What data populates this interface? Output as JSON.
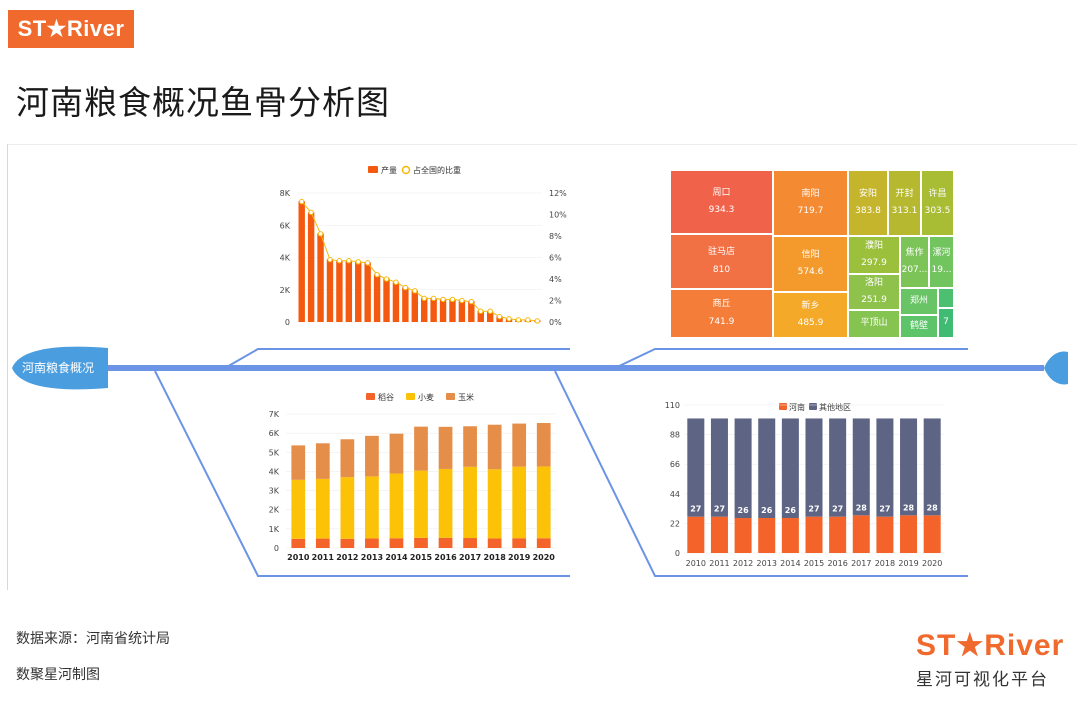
{
  "header": {
    "logo": "ST★River",
    "title": "河南粮食概况鱼骨分析图"
  },
  "fishbone": {
    "head_label": "河南粮食概况"
  },
  "footer": {
    "source": "数据来源：河南省统计局",
    "credit": "数聚星河制图",
    "brand": "ST★River",
    "brand_sub": "星河可视化平台"
  },
  "colors": {
    "accent": "#ef6a2c",
    "spine": "#6b94e6",
    "head": "#4a9ee0",
    "bar_red": "#f35a0f",
    "rice": "#f4642a",
    "wheat": "#fcc208",
    "corn": "#e58e4a",
    "henan": "#f4642a",
    "other": "#5e6584"
  },
  "chart_data": [
    {
      "type": "bar",
      "title": "",
      "legend": [
        "产量",
        "占全国的比重"
      ],
      "legend_position": "top",
      "series": [
        {
          "name": "产量",
          "type": "bar",
          "values": [
            7500,
            6800,
            5500,
            3900,
            3800,
            3800,
            3750,
            3700,
            2950,
            2700,
            2450,
            2150,
            1950,
            1500,
            1450,
            1400,
            1400,
            1350,
            1300,
            700,
            650,
            350,
            200,
            150,
            120,
            100
          ]
        },
        {
          "name": "占全国的比重",
          "type": "line",
          "axis": "right",
          "values": [
            11.2,
            10.2,
            8.2,
            5.8,
            5.7,
            5.7,
            5.6,
            5.5,
            4.4,
            4.0,
            3.7,
            3.2,
            2.9,
            2.2,
            2.2,
            2.1,
            2.1,
            2.0,
            1.9,
            1.0,
            1.0,
            0.5,
            0.3,
            0.2,
            0.2,
            0.1
          ]
        }
      ],
      "yticks_left": [
        "0",
        "2K",
        "4K",
        "6K",
        "8K"
      ],
      "yticks_right": [
        "0%",
        "2%",
        "4%",
        "6%",
        "8%",
        "10%",
        "12%"
      ],
      "ylim": [
        0,
        8000
      ],
      "ylim_right": [
        0,
        12
      ]
    },
    {
      "type": "heatmap",
      "subtype": "treemap",
      "items": [
        {
          "name": "周口",
          "value": "934.3",
          "color": "#f0624a"
        },
        {
          "name": "驻马店",
          "value": "810",
          "color": "#f17144"
        },
        {
          "name": "商丘",
          "value": "741.9",
          "color": "#f47d3a"
        },
        {
          "name": "南阳",
          "value": "719.7",
          "color": "#f48a32"
        },
        {
          "name": "信阳",
          "value": "574.6",
          "color": "#f49a2c"
        },
        {
          "name": "新乡",
          "value": "485.9",
          "color": "#f5a928"
        },
        {
          "name": "安阳",
          "value": "383.8",
          "color": "#c5b52c"
        },
        {
          "name": "开封",
          "value": "313.1",
          "color": "#b6b930"
        },
        {
          "name": "许昌",
          "value": "303.5",
          "color": "#a8bc34"
        },
        {
          "name": "濮阳",
          "value": "297.9",
          "color": "#9ac03c"
        },
        {
          "name": "洛阳",
          "value": "251.9",
          "color": "#8fc24a"
        },
        {
          "name": "平顶山",
          "value": "",
          "color": "#86c452"
        },
        {
          "name": "焦作",
          "value": "207...",
          "color": "#7cc458"
        },
        {
          "name": "漯河",
          "value": "19...",
          "color": "#72c45e"
        },
        {
          "name": "郑州",
          "value": "",
          "color": "#68c464"
        },
        {
          "name": "鹤壁",
          "value": "",
          "color": "#5ec46a"
        },
        {
          "name": "",
          "value": "",
          "color": "#4cc070"
        },
        {
          "name": "7",
          "value": "",
          "color": "#3fbb74"
        }
      ]
    },
    {
      "type": "bar",
      "stacked": true,
      "legend": [
        "稻谷",
        "小麦",
        "玉米"
      ],
      "legend_position": "top",
      "categories": [
        "2010",
        "2011",
        "2012",
        "2013",
        "2014",
        "2015",
        "2016",
        "2017",
        "2018",
        "2019",
        "2020"
      ],
      "series": [
        {
          "name": "稻谷",
          "values": [
            480,
            490,
            480,
            500,
            510,
            530,
            530,
            520,
            500,
            510,
            510
          ]
        },
        {
          "name": "小麦",
          "values": [
            3080,
            3120,
            3220,
            3240,
            3380,
            3510,
            3600,
            3720,
            3610,
            3740,
            3750
          ]
        },
        {
          "name": "玉米",
          "values": [
            1800,
            1860,
            1980,
            2120,
            2080,
            2300,
            2200,
            2120,
            2330,
            2250,
            2270
          ]
        }
      ],
      "yticks": [
        "0",
        "1K",
        "2K",
        "3K",
        "4K",
        "5K",
        "6K",
        "7K"
      ],
      "ylim": [
        0,
        7000
      ]
    },
    {
      "type": "bar",
      "stacked": true,
      "legend": [
        "河南",
        "其他地区"
      ],
      "legend_position": "top",
      "categories": [
        "2010",
        "2011",
        "2012",
        "2013",
        "2014",
        "2015",
        "2016",
        "2017",
        "2018",
        "2019",
        "2020"
      ],
      "series": [
        {
          "name": "河南",
          "values": [
            27,
            27,
            26,
            26,
            26,
            27,
            27,
            28,
            27,
            28,
            28
          ]
        },
        {
          "name": "其他地区",
          "values": [
            73,
            73,
            74,
            74,
            74,
            73,
            73,
            72,
            73,
            72,
            72
          ]
        }
      ],
      "yticks": [
        "0",
        "22",
        "44",
        "66",
        "88",
        "110"
      ],
      "ylim": [
        0,
        110
      ]
    }
  ]
}
